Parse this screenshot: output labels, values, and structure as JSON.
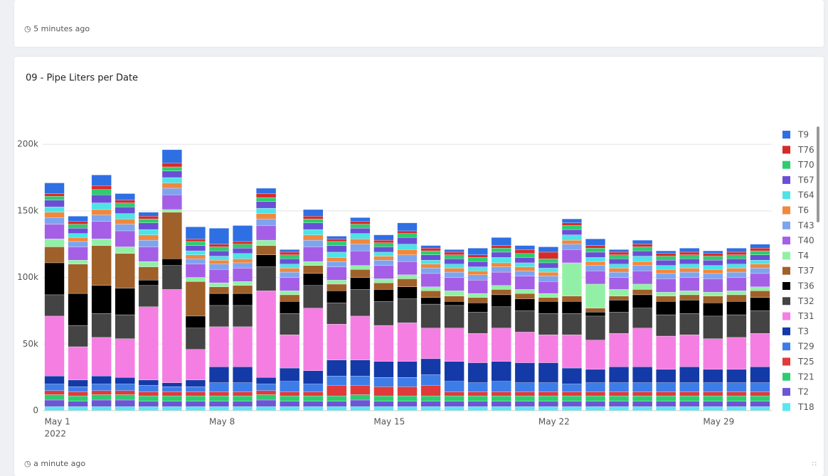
{
  "header": {
    "updated": "5 minutes ago"
  },
  "footer": {
    "updated": "a minute ago"
  },
  "chart_data": {
    "type": "bar",
    "stacked": true,
    "title": "09 - Pipe Liters per Date",
    "categories": [
      "May 1",
      null,
      null,
      null,
      null,
      null,
      null,
      "May 8",
      null,
      null,
      null,
      null,
      null,
      null,
      "May 15",
      null,
      null,
      null,
      null,
      null,
      null,
      "May 22",
      null,
      null,
      null,
      null,
      null,
      null,
      "May 29",
      null,
      null
    ],
    "x_year_label": "2022",
    "ylim": [
      0,
      215000
    ],
    "yticks": [
      0,
      {
        "value": 50000,
        "label": "50k"
      },
      {
        "value": 100000,
        "label": "100k"
      },
      {
        "value": 150000,
        "label": "150k"
      },
      {
        "value": 200000,
        "label": "200k"
      }
    ],
    "grid": true,
    "legend": "right",
    "series": [
      {
        "name": "T9",
        "color": "#2f6fe4",
        "values": [
          8000,
          4000,
          8000,
          5000,
          3000,
          10000,
          9000,
          12000,
          12000,
          4000,
          2000,
          5000,
          2000,
          3000,
          4000,
          6000,
          2000,
          2000,
          5000,
          6000,
          3000,
          4000,
          3000,
          5000,
          2000,
          3000,
          2000,
          3000,
          2000,
          3000,
          3000
        ]
      },
      {
        "name": "T76",
        "color": "#d62b2b",
        "values": [
          2000,
          2000,
          3000,
          2000,
          2000,
          3000,
          2000,
          2000,
          2000,
          3000,
          2000,
          2000,
          2000,
          2000,
          2000,
          2000,
          2000,
          2000,
          2000,
          2000,
          3000,
          5000,
          2000,
          2000,
          2000,
          2000,
          2000,
          2000,
          2000,
          2000,
          2000
        ]
      },
      {
        "name": "T70",
        "color": "#2dcc6f",
        "values": [
          3000,
          3000,
          4000,
          3000,
          3000,
          3000,
          3000,
          3000,
          3000,
          3000,
          3000,
          3000,
          3000,
          3000,
          3000,
          3000,
          3000,
          3000,
          3000,
          3000,
          3000,
          3000,
          3000,
          3000,
          3000,
          3000,
          3000,
          3000,
          3000,
          3000,
          3000
        ]
      },
      {
        "name": "T67",
        "color": "#6a4fd6",
        "values": [
          5000,
          4000,
          6000,
          5000,
          5000,
          5000,
          4000,
          4000,
          4000,
          5000,
          4000,
          5000,
          5000,
          4000,
          4000,
          5000,
          4000,
          4000,
          4000,
          4000,
          4000,
          4000,
          4000,
          4000,
          4000,
          4000,
          4000,
          4000,
          4000,
          4000,
          4000
        ]
      },
      {
        "name": "T64",
        "color": "#4ee3e6",
        "values": [
          4000,
          3000,
          5000,
          4000,
          4000,
          4000,
          3000,
          3000,
          4000,
          4000,
          3000,
          4000,
          4000,
          4000,
          3000,
          4000,
          3000,
          3000,
          3000,
          4000,
          3000,
          3000,
          4000,
          3000,
          3000,
          4000,
          3000,
          3000,
          3000,
          3000,
          3000
        ]
      },
      {
        "name": "T6",
        "color": "#f0883e",
        "values": [
          4000,
          3000,
          4000,
          4000,
          4000,
          4000,
          3000,
          3000,
          3000,
          4000,
          3000,
          4000,
          3000,
          4000,
          3000,
          4000,
          3000,
          3000,
          3000,
          3000,
          3000,
          3000,
          3000,
          3000,
          3000,
          3000,
          3000,
          3000,
          3000,
          3000,
          3000
        ]
      },
      {
        "name": "T43",
        "color": "#7ea4ef",
        "values": [
          5000,
          4000,
          5000,
          5000,
          5000,
          5000,
          4000,
          4000,
          4000,
          5000,
          4000,
          5000,
          4000,
          5000,
          4000,
          5000,
          4000,
          4000,
          4000,
          4000,
          4000,
          4000,
          4000,
          4000,
          4000,
          4000,
          4000,
          4000,
          4000,
          4000,
          4000
        ]
      },
      {
        "name": "T40",
        "color": "#a55fe6",
        "values": [
          11000,
          10000,
          13000,
          12000,
          11000,
          11000,
          10000,
          10000,
          10000,
          11000,
          10000,
          11000,
          10000,
          11000,
          10000,
          10000,
          10000,
          10000,
          10000,
          10000,
          10000,
          9000,
          10000,
          10000,
          9000,
          10000,
          10000,
          10000,
          10000,
          10000,
          10000
        ]
      },
      {
        "name": "T4",
        "color": "#92f0a6",
        "values": [
          6000,
          3000,
          5000,
          5000,
          4000,
          2000,
          3000,
          3000,
          3000,
          4000,
          3000,
          3000,
          3000,
          3000,
          3000,
          3000,
          3000,
          4000,
          3000,
          3000,
          3000,
          3000,
          25000,
          18000,
          5000,
          4000,
          3000,
          3000,
          3000,
          3000,
          3000
        ]
      },
      {
        "name": "T37",
        "color": "#a0602a",
        "values": [
          12000,
          22000,
          30000,
          26000,
          10000,
          35000,
          26000,
          5000,
          6000,
          7000,
          5000,
          6000,
          5000,
          6000,
          5000,
          6000,
          5000,
          4000,
          4000,
          4000,
          4000,
          3000,
          4000,
          3000,
          3000,
          4000,
          4000,
          4000,
          5000,
          5000,
          5000
        ]
      },
      {
        "name": "T36",
        "color": "#000000",
        "values": [
          24000,
          24000,
          21000,
          20000,
          4000,
          5000,
          9000,
          9000,
          9000,
          9000,
          9000,
          9000,
          9000,
          9000,
          9000,
          9000,
          5000,
          3000,
          7000,
          9000,
          9000,
          9000,
          9000,
          3000,
          9000,
          10000,
          10000,
          10000,
          10000,
          10000,
          10000
        ]
      },
      {
        "name": "T32",
        "color": "#444444",
        "values": [
          16000,
          16000,
          18000,
          18000,
          16000,
          18000,
          16000,
          16000,
          16000,
          18000,
          16000,
          17000,
          16000,
          20000,
          18000,
          18000,
          18000,
          17000,
          16000,
          16000,
          16000,
          16000,
          16000,
          18000,
          16000,
          15000,
          16000,
          16000,
          17000,
          17000,
          17000
        ]
      },
      {
        "name": "T31",
        "color": "#f57ee3",
        "values": [
          45000,
          25000,
          29000,
          29000,
          55000,
          70000,
          23000,
          30000,
          30000,
          65000,
          25000,
          47000,
          27000,
          33000,
          27000,
          29000,
          23000,
          25000,
          22000,
          25000,
          23000,
          21000,
          25000,
          22000,
          25000,
          29000,
          25000,
          24000,
          23000,
          24000,
          25000
        ]
      },
      {
        "name": "T3",
        "color": "#143aa8",
        "values": [
          6000,
          5000,
          6000,
          5000,
          4000,
          3000,
          5000,
          12000,
          12000,
          5000,
          10000,
          10000,
          12000,
          12000,
          12000,
          12000,
          12000,
          15000,
          15000,
          15000,
          15000,
          15000,
          12000,
          10000,
          12000,
          12000,
          10000,
          12000,
          10000,
          10000,
          12000
        ]
      },
      {
        "name": "T29",
        "color": "#3d7de8",
        "values": [
          5000,
          4000,
          5000,
          5000,
          5000,
          4000,
          4000,
          7000,
          7000,
          5000,
          8000,
          6000,
          7000,
          7000,
          7000,
          7000,
          8000,
          8000,
          7000,
          8000,
          7000,
          7000,
          6000,
          7000,
          7000,
          7000,
          7000,
          7000,
          7000,
          7000,
          7000
        ]
      },
      {
        "name": "T25",
        "color": "#e03a3a",
        "values": [
          3000,
          3000,
          3000,
          3000,
          3000,
          3000,
          3000,
          3000,
          3000,
          3000,
          3000,
          3000,
          8000,
          7000,
          7000,
          7000,
          8000,
          3000,
          3000,
          3000,
          3000,
          3000,
          3000,
          3000,
          3000,
          3000,
          3000,
          3000,
          3000,
          3000,
          3000
        ]
      },
      {
        "name": "T21",
        "color": "#2ecc71",
        "values": [
          4000,
          4000,
          4000,
          4000,
          4000,
          4000,
          4000,
          4000,
          4000,
          4000,
          4000,
          4000,
          4000,
          4000,
          4000,
          4000,
          4000,
          4000,
          4000,
          4000,
          4000,
          4000,
          4000,
          4000,
          4000,
          4000,
          4000,
          4000,
          4000,
          4000,
          4000
        ]
      },
      {
        "name": "T2",
        "color": "#6b56d4",
        "values": [
          5000,
          4000,
          5000,
          5000,
          4000,
          4000,
          4000,
          4000,
          4000,
          5000,
          4000,
          4000,
          4000,
          5000,
          4000,
          4000,
          4000,
          4000,
          4000,
          4000,
          4000,
          4000,
          4000,
          4000,
          4000,
          4000,
          4000,
          4000,
          4000,
          4000,
          4000
        ]
      },
      {
        "name": "T18",
        "color": "#5ae6f0",
        "values": [
          3000,
          3000,
          3000,
          3000,
          3000,
          3000,
          3000,
          3000,
          3000,
          3000,
          3000,
          3000,
          3000,
          3000,
          3000,
          3000,
          3000,
          3000,
          3000,
          3000,
          3000,
          3000,
          3000,
          3000,
          3000,
          3000,
          3000,
          3000,
          3000,
          3000,
          3000
        ]
      }
    ]
  }
}
